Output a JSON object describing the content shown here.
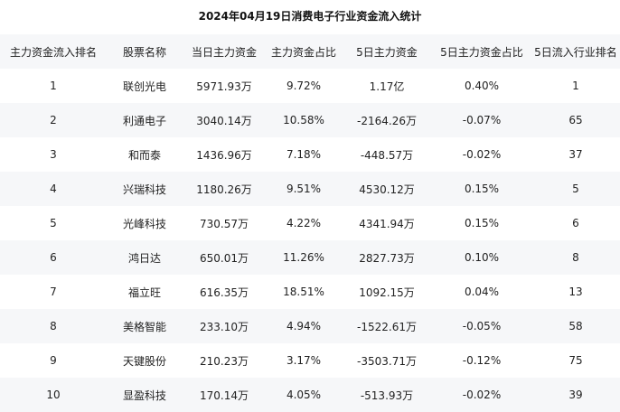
{
  "title": "2024年04月19日消费电子行业资金流入统计",
  "headers": [
    "主力资金流入排名",
    "股票名称",
    "当日主力资金",
    "主力资金占比",
    "5日主力资金",
    "5日主力资金占比",
    "5日流入行业排名"
  ],
  "rows": [
    [
      "1",
      "联创光电",
      "5971.93万",
      "9.72%",
      "1.17亿",
      "0.40%",
      "1"
    ],
    [
      "2",
      "利通电子",
      "3040.14万",
      "10.58%",
      "-2164.26万",
      "-0.07%",
      "65"
    ],
    [
      "3",
      "和而泰",
      "1436.96万",
      "7.18%",
      "-448.57万",
      "-0.02%",
      "37"
    ],
    [
      "4",
      "兴瑞科技",
      "1180.26万",
      "9.51%",
      "4530.12万",
      "0.15%",
      "5"
    ],
    [
      "5",
      "光峰科技",
      "730.57万",
      "4.22%",
      "4341.94万",
      "0.15%",
      "6"
    ],
    [
      "6",
      "鸿日达",
      "650.01万",
      "11.26%",
      "2827.73万",
      "0.10%",
      "8"
    ],
    [
      "7",
      "福立旺",
      "616.35万",
      "18.51%",
      "1092.15万",
      "0.04%",
      "13"
    ],
    [
      "8",
      "美格智能",
      "233.10万",
      "4.94%",
      "-1522.61万",
      "-0.05%",
      "58"
    ],
    [
      "9",
      "天键股份",
      "210.23万",
      "3.17%",
      "-3503.71万",
      "-0.12%",
      "75"
    ],
    [
      "10",
      "显盈科技",
      "170.14万",
      "4.05%",
      "-513.93万",
      "-0.02%",
      "39"
    ]
  ]
}
